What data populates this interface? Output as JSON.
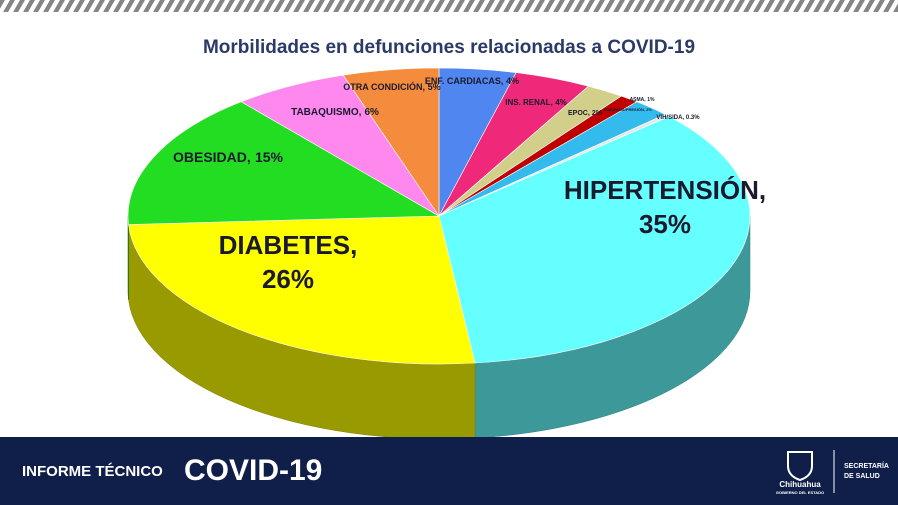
{
  "chart_data": {
    "type": "pie3d",
    "title": "Morbilidades en defunciones relacionadas a COVID-19",
    "categories": [
      "ENF. CARDIACAS,",
      "INS. RENAL,",
      "EPOC,",
      "ASMA,",
      "INMUNOSUPRESIÓN,",
      "VIH/SIDA,",
      "HIPERTENSIÓN,",
      "DIABETES,",
      "OBESIDAD,",
      "TABAQUISMO,",
      "OTRA CONDICIÓN,"
    ],
    "values": [
      4,
      4,
      2,
      1,
      2,
      0.3,
      35,
      26,
      15,
      6,
      5
    ],
    "value_labels": [
      "4%",
      "4%",
      "2%",
      "1%",
      "2%",
      "0.3%",
      "35%",
      "26%",
      "15%",
      "6%",
      "5%"
    ],
    "colors": [
      "#4f86f0",
      "#f0287a",
      "#d2cf8a",
      "#c00000",
      "#33bbee",
      "#e8e8e8",
      "#66ffff",
      "#ffff00",
      "#22dd22",
      "#ff88ee",
      "#f58b3c"
    ]
  },
  "footer": {
    "report": "INFORME TÉCNICO",
    "topic": "COVID-19",
    "state": "Chihuahua",
    "government": "GOBIERNO DEL ESTADO",
    "office_line1": "SECRETARÍA",
    "office_line2": "DE SALUD"
  }
}
